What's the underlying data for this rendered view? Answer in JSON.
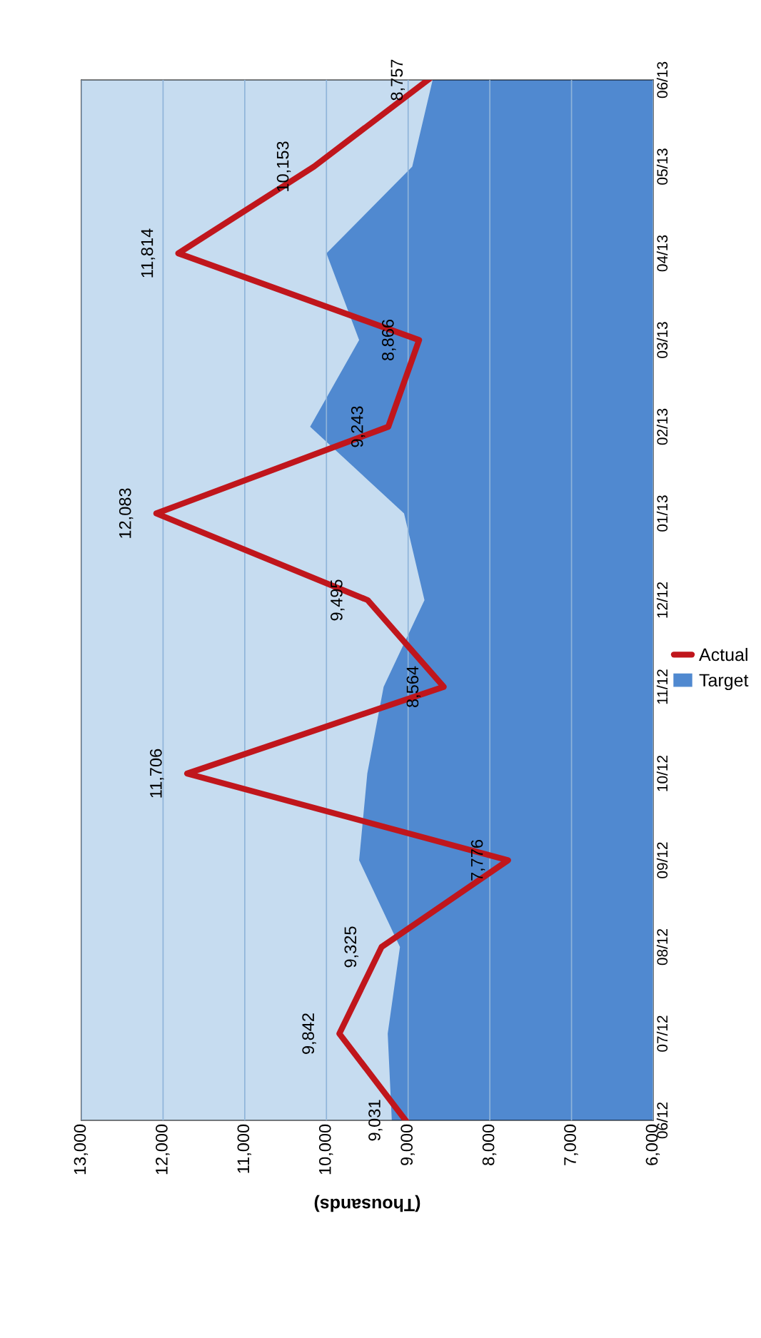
{
  "chart_data": {
    "type": "area",
    "orientation": "horizontal",
    "xlabel": "(Thousands)",
    "categories": [
      "06/13",
      "05/13",
      "04/13",
      "03/13",
      "02/13",
      "01/13",
      "12/12",
      "11/12",
      "10/12",
      "09/12",
      "08/12",
      "07/12",
      "06/12"
    ],
    "series": [
      {
        "name": "Target",
        "color": "#5089d0",
        "values": [
          8700,
          8950,
          10000,
          9600,
          10200,
          9050,
          8800,
          9300,
          9500,
          9600,
          9100,
          9250,
          9200
        ]
      },
      {
        "name": "Actual",
        "type": "line",
        "color": "#c0161c",
        "values": [
          8757,
          10153,
          11814,
          8866,
          9243,
          12083,
          9495,
          8564,
          11706,
          7776,
          9325,
          9842,
          9031
        ],
        "value_labels": [
          "8,757",
          "10,153",
          "11,814",
          "8,866",
          "9,243",
          "12,083",
          "9,495",
          "8,564",
          "11,706",
          "7,776",
          "9,325",
          "9,842",
          "9,031"
        ]
      }
    ],
    "xlim": [
      13000,
      6000
    ],
    "xticks": [
      {
        "value": 13000,
        "label": "13,000"
      },
      {
        "value": 12000,
        "label": "12,000"
      },
      {
        "value": 11000,
        "label": "11,000"
      },
      {
        "value": 10000,
        "label": "10,000"
      },
      {
        "value": 9000,
        "label": "9,000"
      },
      {
        "value": 8000,
        "label": "8,000"
      },
      {
        "value": 7000,
        "label": "7,000"
      },
      {
        "value": 6000,
        "label": "6,000"
      }
    ],
    "grid": "x",
    "legend": "right",
    "line_style": "solid",
    "marker": "none"
  }
}
